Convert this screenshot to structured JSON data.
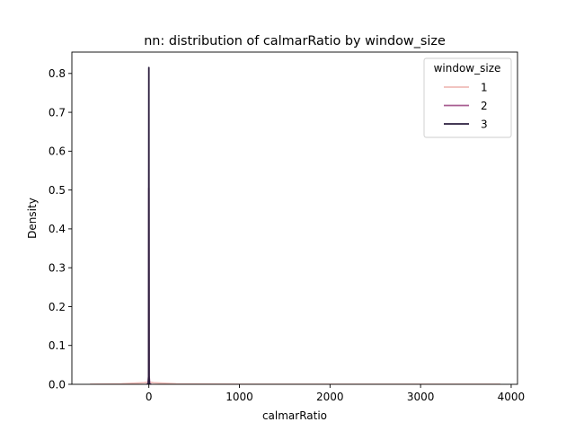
{
  "chart_data": {
    "type": "line",
    "title": "nn: distribution of calmarRatio by window_size",
    "xlabel": "calmarRatio",
    "ylabel": "Density",
    "xlim": [
      -850,
      4070
    ],
    "ylim": [
      0,
      0.855
    ],
    "xticks": [
      0,
      1000,
      2000,
      3000,
      4000
    ],
    "xtick_labels": [
      "0",
      "1000",
      "2000",
      "3000",
      "4000"
    ],
    "yticks": [
      0.0,
      0.1,
      0.2,
      0.3,
      0.4,
      0.5,
      0.6,
      0.7,
      0.8
    ],
    "ytick_labels": [
      "0.0",
      "0.1",
      "0.2",
      "0.3",
      "0.4",
      "0.5",
      "0.6",
      "0.7",
      "0.8"
    ],
    "grid": false,
    "legend": {
      "title": "window_size",
      "placement": "top-right"
    },
    "series": [
      {
        "name": "1",
        "color": "#efbcb8",
        "x": [
          -650,
          -300,
          -50,
          0,
          50,
          300,
          1000,
          2000,
          3000,
          3880
        ],
        "y": [
          0.0,
          0.001,
          0.004,
          0.006,
          0.004,
          0.001,
          0.0,
          0.0,
          0.0,
          0.0
        ]
      },
      {
        "name": "2",
        "color": "#a85d91",
        "x": [
          -30,
          -10,
          -3,
          -1,
          0,
          1,
          3,
          10,
          30
        ],
        "y": [
          0.0,
          0.0,
          0.02,
          0.3,
          0.505,
          0.3,
          0.02,
          0.0,
          0.0
        ]
      },
      {
        "name": "3",
        "color": "#2c1e3e",
        "x": [
          -20,
          -6,
          -2,
          -1,
          0,
          1,
          2,
          6,
          20
        ],
        "y": [
          0.0,
          0.0,
          0.02,
          0.42,
          0.815,
          0.42,
          0.02,
          0.0,
          0.0
        ]
      }
    ]
  }
}
